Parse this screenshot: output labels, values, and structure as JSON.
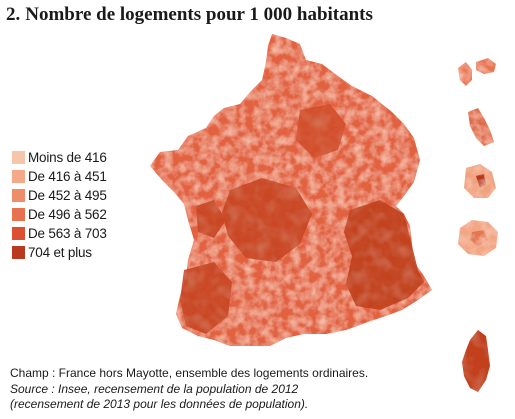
{
  "title": {
    "number": "2.",
    "text": "Nombre de logements pour 1 000 habitants"
  },
  "legend": {
    "items": [
      {
        "label": "Moins de 416",
        "color": "#f6c6aa"
      },
      {
        "label": "De 416 à 451",
        "color": "#f4aa88"
      },
      {
        "label": "De 452 à 495",
        "color": "#ef8d69"
      },
      {
        "label": "De 496 à 562",
        "color": "#e8714f"
      },
      {
        "label": "De 563 à 703",
        "color": "#dd4f31"
      },
      {
        "label": "704 et plus",
        "color": "#b8391d"
      }
    ]
  },
  "notes": {
    "scope": "Champ : France hors Mayotte, ensemble des logements ordinaires.",
    "source_lead": "Source :",
    "source_text": "Insee, recensement de la population de 2012",
    "source_paren": "(recensement de 2013 pour les données de population)."
  },
  "map": {
    "regions": [
      "France métropolitaine",
      "Guadeloupe",
      "Martinique",
      "Guyane",
      "La Réunion",
      "Corse"
    ]
  }
}
